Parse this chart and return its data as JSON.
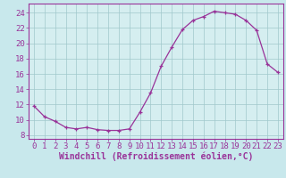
{
  "x": [
    0,
    1,
    2,
    3,
    4,
    5,
    6,
    7,
    8,
    9,
    10,
    11,
    12,
    13,
    14,
    15,
    16,
    17,
    18,
    19,
    20,
    21,
    22,
    23
  ],
  "y": [
    11.8,
    10.4,
    9.8,
    9.0,
    8.8,
    9.0,
    8.7,
    8.6,
    8.6,
    8.8,
    11.0,
    13.5,
    17.0,
    19.5,
    21.8,
    23.0,
    23.5,
    24.2,
    24.0,
    23.8,
    23.0,
    21.7,
    17.3,
    16.2
  ],
  "xlim": [
    -0.5,
    23.5
  ],
  "ylim": [
    7.5,
    25.2
  ],
  "yticks": [
    8,
    10,
    12,
    14,
    16,
    18,
    20,
    22,
    24
  ],
  "xticks": [
    0,
    1,
    2,
    3,
    4,
    5,
    6,
    7,
    8,
    9,
    10,
    11,
    12,
    13,
    14,
    15,
    16,
    17,
    18,
    19,
    20,
    21,
    22,
    23
  ],
  "xlabel": "Windchill (Refroidissement éolien,°C)",
  "line_color": "#993399",
  "marker_color": "#993399",
  "bg_color": "#c8e8ec",
  "plot_bg": "#d5eef0",
  "grid_color": "#a0c8cc",
  "axis_color": "#993399",
  "label_color": "#993399",
  "tick_color": "#993399",
  "font_size": 6.5,
  "xlabel_font_size": 7,
  "marker_size": 3.5
}
